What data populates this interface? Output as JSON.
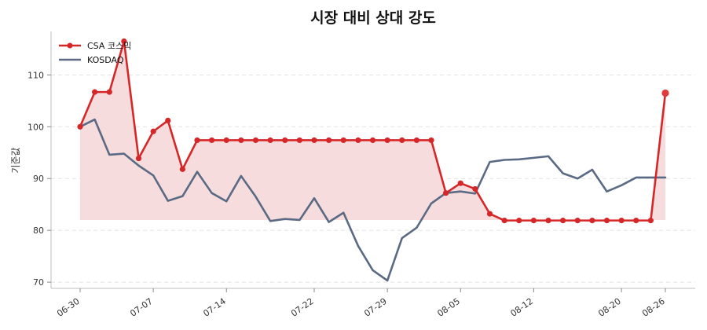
{
  "chart_data": {
    "type": "line",
    "title": "시장 대비 상대 강도",
    "xlabel": "",
    "ylabel": "기준값",
    "ylim": [
      68.8,
      118.4
    ],
    "yticks": [
      70,
      80,
      90,
      100,
      110
    ],
    "xticks": [
      "06-30",
      "07-07",
      "07-14",
      "07-22",
      "07-29",
      "08-05",
      "08-12",
      "08-20",
      "08-26"
    ],
    "x": [
      "06-30",
      "07-01",
      "07-02",
      "07-03",
      "07-04",
      "07-07",
      "07-08",
      "07-09",
      "07-10",
      "07-11",
      "07-14",
      "07-15",
      "07-16",
      "07-17",
      "07-18",
      "07-21",
      "07-22",
      "07-23",
      "07-24",
      "07-25",
      "07-28",
      "07-29",
      "07-30",
      "07-31",
      "08-01",
      "08-04",
      "08-05",
      "08-06",
      "08-07",
      "08-08",
      "08-11",
      "08-12",
      "08-13",
      "08-14",
      "08-15",
      "08-18",
      "08-19",
      "08-20",
      "08-21",
      "08-22",
      "08-25"
    ],
    "series": [
      {
        "name": "CSA 코스믹",
        "color": "#d62728",
        "values": [
          100,
          106.7,
          106.7,
          116.5,
          93.9,
          99.1,
          101.2,
          91.8,
          97.4,
          97.4,
          97.4,
          97.4,
          97.4,
          97.4,
          97.4,
          97.4,
          97.4,
          97.4,
          97.4,
          97.4,
          97.4,
          97.4,
          97.4,
          97.4,
          97.4,
          87.2,
          89.1,
          88.0,
          83.2,
          81.9,
          81.9,
          81.9,
          81.9,
          81.9,
          81.9,
          81.9,
          81.9,
          81.9,
          81.9,
          81.9,
          106.5
        ]
      },
      {
        "name": "KOSDAQ",
        "color": "#5a6a85",
        "values": [
          100,
          101.4,
          94.6,
          94.8,
          92.5,
          90.6,
          85.7,
          86.6,
          91.3,
          87.2,
          85.6,
          90.5,
          86.5,
          81.8,
          82.2,
          82.0,
          86.2,
          81.6,
          83.4,
          77.0,
          72.3,
          70.3,
          78.5,
          80.5,
          85.2,
          87.2,
          87.5,
          87.1,
          93.2,
          93.6,
          93.7,
          94.0,
          94.3,
          91.0,
          90.0,
          91.7,
          87.5,
          88.7,
          90.2,
          90.2,
          90.2
        ]
      }
    ],
    "fill_between": {
      "series": "CSA 코스믹",
      "baseline": 82,
      "color": "#f7d9d9"
    },
    "grid": "y-dashed",
    "legend": "top-left"
  }
}
